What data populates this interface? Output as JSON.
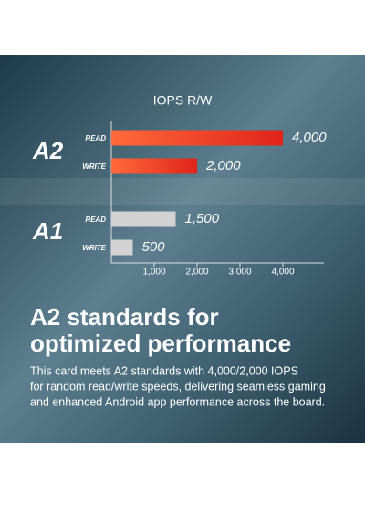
{
  "chart_data": {
    "type": "bar",
    "orientation": "horizontal",
    "title": "IOPS R/W",
    "group_labels": [
      "A2",
      "A1"
    ],
    "categories": [
      "READ",
      "WRITE",
      "READ",
      "WRITE"
    ],
    "values": [
      4000,
      2000,
      1500,
      500
    ],
    "value_labels": [
      "4,000",
      "2,000",
      "1,500",
      "500"
    ],
    "colors": [
      "#e8361f",
      "#e8361f",
      "#d2d2d2",
      "#d2d2d2"
    ],
    "xlim": [
      0,
      5000
    ],
    "xticks": [
      {
        "value": 1000,
        "label": "1,000"
      },
      {
        "value": 2000,
        "label": "2,000"
      },
      {
        "value": 3000,
        "label": "3,000"
      },
      {
        "value": 4000,
        "label": "4,000"
      }
    ]
  },
  "heading": [
    "A2 standards for",
    "optimized performance"
  ],
  "body": [
    "This card meets A2 standards with 4,000/2,000 IOPS",
    "for random read/write speeds, delivering seamless gaming",
    "and enhanced Android app performance across the board."
  ]
}
